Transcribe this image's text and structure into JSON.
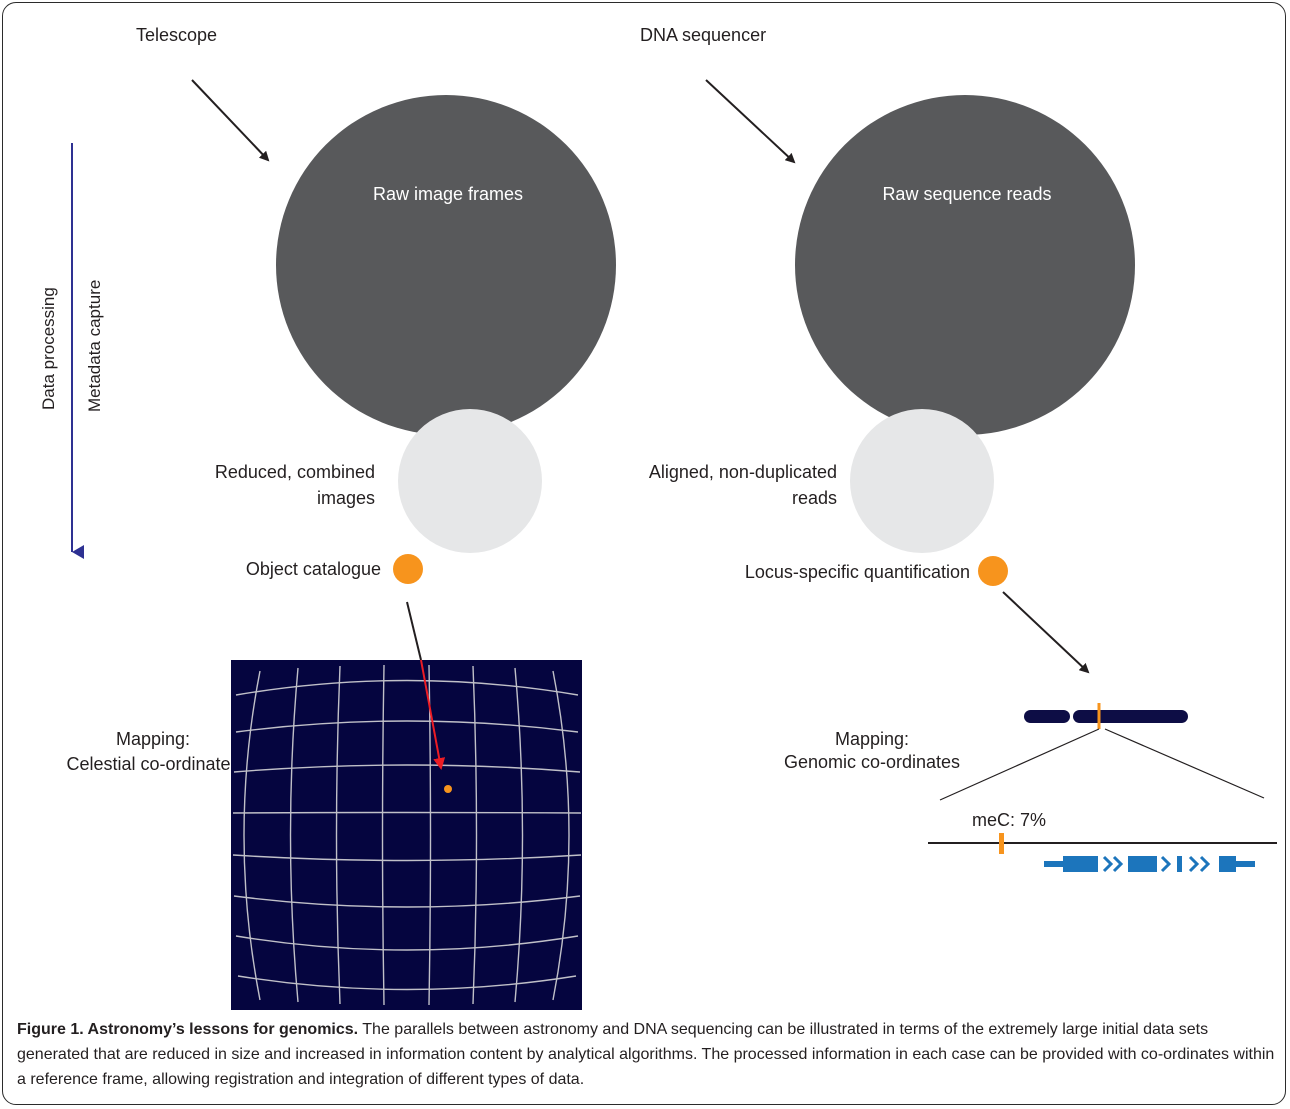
{
  "colors": {
    "big_circle": "#58595b",
    "small_circle": "#e6e7e8",
    "dot": "#f7941d",
    "sky_background": "#05053f",
    "grid_line": "#c0c0c8",
    "processing_arrow": "#2e3192",
    "red_arrow": "#ed1c24",
    "chromosome": "#0d0d45",
    "gene": "#1c75bc"
  },
  "left_column": {
    "source": "Telescope",
    "raw": "Raw image frames",
    "reduced_line1": "Reduced, combined",
    "reduced_line2": "images",
    "catalogue": "Object catalogue",
    "mapping_line1": "Mapping:",
    "mapping_line2": "Celestial co-ordinates"
  },
  "right_column": {
    "source": "DNA sequencer",
    "raw": "Raw sequence reads",
    "aligned_line1": "Aligned, non-duplicated",
    "aligned_line2": "reads",
    "quantification": "Locus-specific quantification",
    "mapping_line1": "Mapping:",
    "mapping_line2": "Genomic co-ordinates",
    "methylation": "meC: 7%"
  },
  "side_labels": {
    "data_processing": "Data processing",
    "metadata_capture": "Metadata capture"
  },
  "caption": {
    "title": "Figure 1. Astronomy’s lessons for genomics.",
    "text": " The parallels between astronomy and DNA sequencing can be illustrated in terms of the extremely large initial data sets generated that are reduced in size and increased in information content by analytical algorithms. The processed information in each case can be provided with co-ordinates within a reference frame, allowing registration and integration of different types of data."
  }
}
